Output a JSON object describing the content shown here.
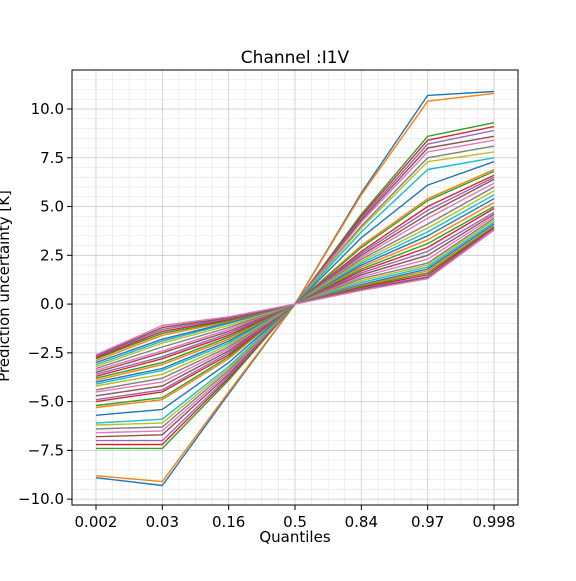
{
  "chart_data": {
    "type": "line",
    "title": "Channel :I1V",
    "xlabel": "Quantiles",
    "ylabel": "Prediction uncertainty [K]",
    "categories": [
      "0.002",
      "0.03",
      "0.16",
      "0.5",
      "0.84",
      "0.97",
      "0.998"
    ],
    "ylim": [
      -10.3,
      12.0
    ],
    "yticks": [
      -10.0,
      -7.5,
      -5.0,
      -2.5,
      0.0,
      2.5,
      5.0,
      7.5,
      10.0
    ],
    "ytick_labels": [
      "−10.0",
      "−7.5",
      "−5.0",
      "−2.5",
      "0.0",
      "2.5",
      "5.0",
      "7.5",
      "10.0"
    ],
    "grid": true,
    "minor_grid": true,
    "legend": "none",
    "colors": [
      "#1f77b4",
      "#ff7f0e",
      "#2ca02c",
      "#d62728",
      "#9467bd",
      "#8c564b",
      "#e377c2",
      "#7f7f7f",
      "#bcbd22",
      "#17becf"
    ],
    "series": [
      {
        "values": [
          -8.9,
          -9.3,
          -4.6,
          0.0,
          5.7,
          10.7,
          10.9
        ]
      },
      {
        "values": [
          -8.8,
          -9.1,
          -4.5,
          0.0,
          5.6,
          10.4,
          10.8
        ]
      },
      {
        "values": [
          -7.4,
          -7.4,
          -3.9,
          0.0,
          4.6,
          8.6,
          9.3
        ]
      },
      {
        "values": [
          -7.2,
          -7.2,
          -3.8,
          0.0,
          4.5,
          8.4,
          9.1
        ]
      },
      {
        "values": [
          -7.0,
          -7.0,
          -3.7,
          0.0,
          4.4,
          8.2,
          8.9
        ]
      },
      {
        "values": [
          -6.8,
          -6.7,
          -3.6,
          0.0,
          4.3,
          8.0,
          8.6
        ]
      },
      {
        "values": [
          -6.6,
          -6.5,
          -3.5,
          0.0,
          4.2,
          7.8,
          8.4
        ]
      },
      {
        "values": [
          -6.4,
          -6.3,
          -3.4,
          0.0,
          4.0,
          7.5,
          8.1
        ]
      },
      {
        "values": [
          -6.2,
          -6.1,
          -3.3,
          0.0,
          3.9,
          7.3,
          7.8
        ]
      },
      {
        "values": [
          -6.1,
          -5.9,
          -3.2,
          0.0,
          3.7,
          6.9,
          7.5
        ]
      },
      {
        "values": [
          -5.7,
          -5.4,
          -3.0,
          0.0,
          3.4,
          6.1,
          7.3
        ]
      },
      {
        "values": [
          -5.3,
          -4.9,
          -2.8,
          0.0,
          3.0,
          5.4,
          6.9
        ]
      },
      {
        "values": [
          -5.2,
          -4.8,
          -2.7,
          0.0,
          2.9,
          5.3,
          6.8
        ]
      },
      {
        "values": [
          -5.0,
          -4.5,
          -2.6,
          0.0,
          2.7,
          5.0,
          6.6
        ]
      },
      {
        "values": [
          -4.9,
          -4.4,
          -2.5,
          0.0,
          2.6,
          4.8,
          6.5
        ]
      },
      {
        "values": [
          -4.7,
          -4.2,
          -2.4,
          0.0,
          2.5,
          4.6,
          6.4
        ]
      },
      {
        "values": [
          -4.5,
          -4.0,
          -2.3,
          0.0,
          2.4,
          4.4,
          6.2
        ]
      },
      {
        "values": [
          -4.4,
          -3.8,
          -2.2,
          0.0,
          2.3,
          4.1,
          6.0
        ]
      },
      {
        "values": [
          -4.2,
          -3.6,
          -2.1,
          0.0,
          2.2,
          3.9,
          5.8
        ]
      },
      {
        "values": [
          -4.1,
          -3.4,
          -2.0,
          0.0,
          2.1,
          3.7,
          5.6
        ]
      },
      {
        "values": [
          -4.0,
          -3.3,
          -1.9,
          0.0,
          2.0,
          3.5,
          5.4
        ]
      },
      {
        "values": [
          -3.9,
          -3.1,
          -1.8,
          0.0,
          1.9,
          3.3,
          5.2
        ]
      },
      {
        "values": [
          -3.8,
          -3.0,
          -1.7,
          0.0,
          1.8,
          3.1,
          5.0
        ]
      },
      {
        "values": [
          -3.7,
          -2.8,
          -1.6,
          0.0,
          1.7,
          2.9,
          4.9
        ]
      },
      {
        "values": [
          -3.6,
          -2.7,
          -1.5,
          0.0,
          1.6,
          2.7,
          4.7
        ]
      },
      {
        "values": [
          -3.5,
          -2.5,
          -1.4,
          0.0,
          1.5,
          2.5,
          4.6
        ]
      },
      {
        "values": [
          -3.4,
          -2.4,
          -1.3,
          0.0,
          1.4,
          2.3,
          4.5
        ]
      },
      {
        "values": [
          -3.3,
          -2.2,
          -1.2,
          0.0,
          1.3,
          2.1,
          4.4
        ]
      },
      {
        "values": [
          -3.2,
          -2.0,
          -1.1,
          0.0,
          1.2,
          2.0,
          4.3
        ]
      },
      {
        "values": [
          -3.1,
          -1.9,
          -1.0,
          0.0,
          1.1,
          1.9,
          4.2
        ]
      },
      {
        "values": [
          -3.0,
          -1.8,
          -0.95,
          0.0,
          1.0,
          1.8,
          4.1
        ]
      },
      {
        "values": [
          -2.9,
          -1.6,
          -0.9,
          0.0,
          0.95,
          1.7,
          4.0
        ]
      },
      {
        "values": [
          -2.8,
          -1.5,
          -0.85,
          0.0,
          0.9,
          1.6,
          3.95
        ]
      },
      {
        "values": [
          -2.75,
          -1.4,
          -0.8,
          0.0,
          0.85,
          1.5,
          3.9
        ]
      },
      {
        "values": [
          -2.7,
          -1.3,
          -0.75,
          0.0,
          0.8,
          1.4,
          3.85
        ]
      },
      {
        "values": [
          -2.65,
          -1.2,
          -0.7,
          0.0,
          0.75,
          1.35,
          3.8
        ]
      },
      {
        "values": [
          -2.6,
          -1.1,
          -0.65,
          0.0,
          0.7,
          1.3,
          3.8
        ]
      }
    ]
  }
}
